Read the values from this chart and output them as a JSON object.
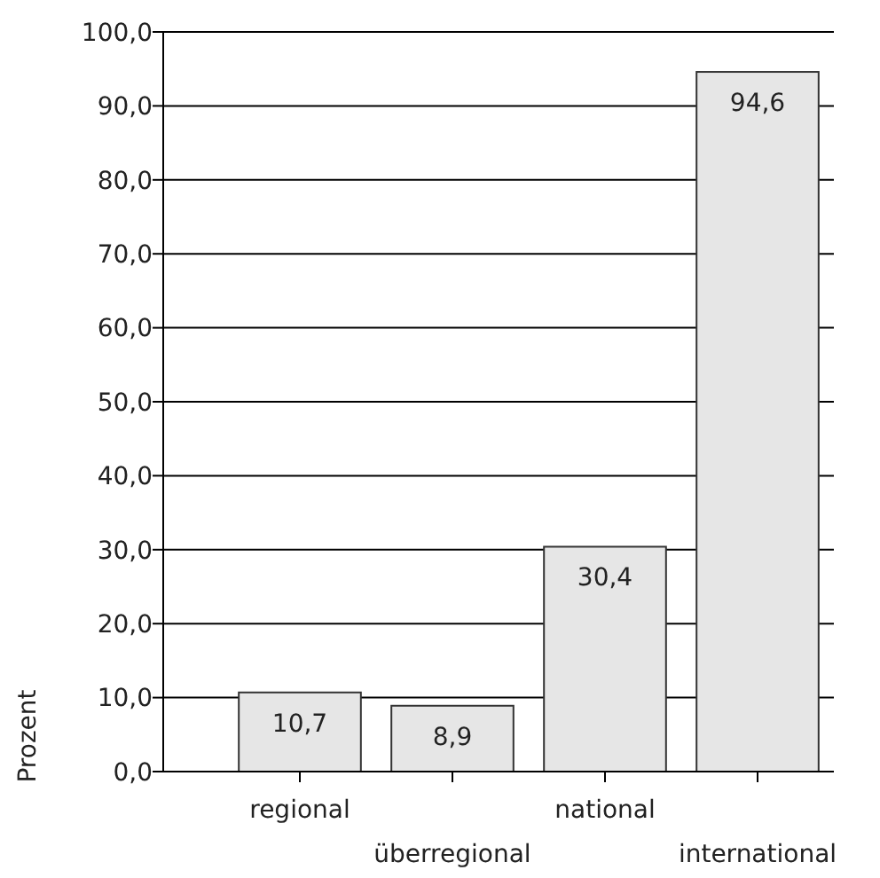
{
  "chart_data": {
    "type": "bar",
    "ylabel": "Prozent",
    "categories": [
      "regional",
      "überregional",
      "national",
      "international"
    ],
    "values": [
      10.7,
      8.9,
      30.4,
      94.6
    ],
    "color": "#e6e6e6",
    "value_labels": [
      "10,7",
      "8,9",
      "30,4",
      "94,6"
    ],
    "ylim": [
      0,
      100
    ],
    "yticks": [
      {
        "value": 0,
        "label": "0,0"
      },
      {
        "value": 10,
        "label": "10,0"
      },
      {
        "value": 20,
        "label": "20,0"
      },
      {
        "value": 30,
        "label": "30,0"
      },
      {
        "value": 40,
        "label": "40,0"
      },
      {
        "value": 50,
        "label": "50,0"
      },
      {
        "value": 60,
        "label": "60,0"
      },
      {
        "value": 70,
        "label": "70,0"
      },
      {
        "value": 80,
        "label": "80,0"
      },
      {
        "value": 90,
        "label": "90,0"
      },
      {
        "value": 100,
        "label": "100,0"
      }
    ],
    "grid": "y"
  }
}
